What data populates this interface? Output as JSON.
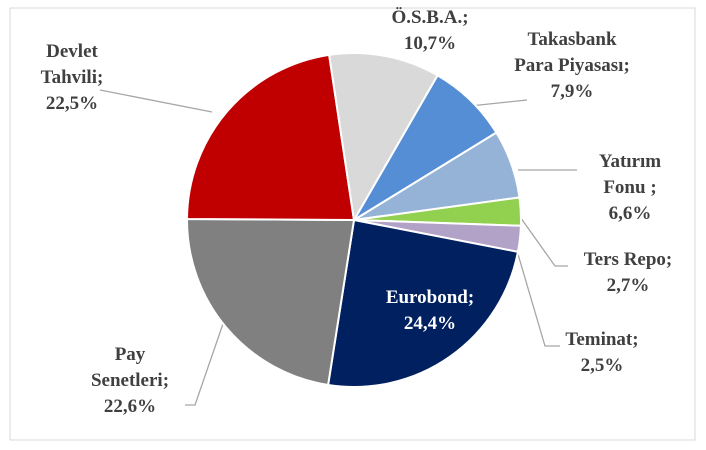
{
  "chart_data": {
    "type": "pie",
    "categories": [
      "Takasbank Para Piyasası;",
      "Yatırım Fonu ;",
      "Ters Repo;",
      "Teminat;",
      "Eurobond;",
      "Pay Senetleri;",
      "Devlet Tahvili;",
      "Ö.S.B.A.;"
    ],
    "values": [
      7.9,
      6.6,
      2.7,
      2.5,
      24.4,
      22.6,
      22.5,
      10.7
    ],
    "value_labels": [
      "7,9%",
      "6,6%",
      "2,7%",
      "2,5%",
      "24,4%",
      "22,6%",
      "22,5%",
      "10,7%"
    ],
    "colors": [
      "#558ed5",
      "#95b3d7",
      "#92d050",
      "#b3a2c7",
      "#002060",
      "#808080",
      "#c00000",
      "#d9d9d9"
    ]
  }
}
